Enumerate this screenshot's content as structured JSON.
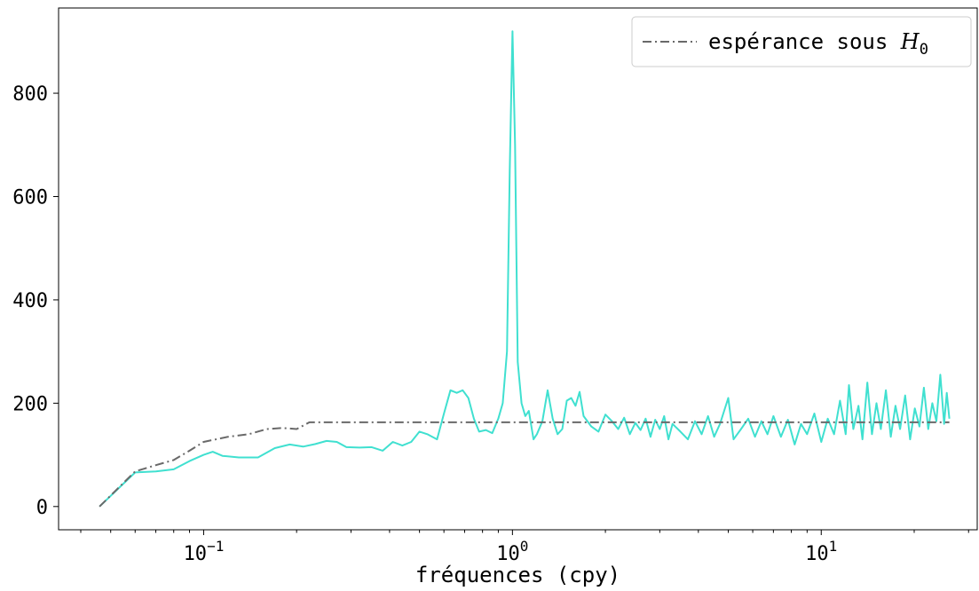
{
  "chart_data": {
    "type": "line",
    "x_scale": "log",
    "xlabel": "fréquences (cpy)",
    "ylabel": "",
    "xlim": [
      0.0339,
      32
    ],
    "ylim": [
      -45,
      965
    ],
    "y_ticks": [
      0,
      200,
      400,
      600,
      800
    ],
    "x_major_ticks": [
      {
        "value": 0.1,
        "base": "10",
        "exp": "−1"
      },
      {
        "value": 1,
        "base": "10",
        "exp": "0"
      },
      {
        "value": 10,
        "base": "10",
        "exp": "1"
      }
    ],
    "legend": {
      "position": "top-right",
      "entries": [
        {
          "text": "espérance sous ",
          "math": "H",
          "subscript": "0",
          "style": "dash-dot",
          "color": "#696969"
        }
      ]
    },
    "series": [
      {
        "style": "solid",
        "color": "#40e0d0",
        "points": [
          [
            0.046,
            0
          ],
          [
            0.06,
            66
          ],
          [
            0.07,
            68
          ],
          [
            0.08,
            72
          ],
          [
            0.09,
            88
          ],
          [
            0.1,
            100
          ],
          [
            0.107,
            106
          ],
          [
            0.115,
            98
          ],
          [
            0.13,
            95
          ],
          [
            0.15,
            95
          ],
          [
            0.17,
            113
          ],
          [
            0.19,
            120
          ],
          [
            0.21,
            116
          ],
          [
            0.23,
            121
          ],
          [
            0.25,
            127
          ],
          [
            0.27,
            125
          ],
          [
            0.29,
            115
          ],
          [
            0.32,
            114
          ],
          [
            0.35,
            115
          ],
          [
            0.38,
            108
          ],
          [
            0.41,
            125
          ],
          [
            0.44,
            118
          ],
          [
            0.47,
            125
          ],
          [
            0.5,
            145
          ],
          [
            0.53,
            140
          ],
          [
            0.57,
            130
          ],
          [
            0.6,
            180
          ],
          [
            0.63,
            225
          ],
          [
            0.66,
            220
          ],
          [
            0.69,
            225
          ],
          [
            0.72,
            210
          ],
          [
            0.75,
            170
          ],
          [
            0.78,
            145
          ],
          [
            0.82,
            148
          ],
          [
            0.86,
            142
          ],
          [
            0.9,
            170
          ],
          [
            0.93,
            200
          ],
          [
            0.96,
            300
          ],
          [
            0.98,
            650
          ],
          [
            1.0,
            920
          ],
          [
            1.02,
            700
          ],
          [
            1.04,
            280
          ],
          [
            1.07,
            200
          ],
          [
            1.1,
            175
          ],
          [
            1.13,
            185
          ],
          [
            1.17,
            130
          ],
          [
            1.2,
            140
          ],
          [
            1.25,
            165
          ],
          [
            1.3,
            225
          ],
          [
            1.35,
            170
          ],
          [
            1.4,
            140
          ],
          [
            1.45,
            150
          ],
          [
            1.5,
            205
          ],
          [
            1.55,
            210
          ],
          [
            1.6,
            195
          ],
          [
            1.65,
            222
          ],
          [
            1.7,
            175
          ],
          [
            1.8,
            155
          ],
          [
            1.9,
            145
          ],
          [
            2.0,
            178
          ],
          [
            2.1,
            165
          ],
          [
            2.2,
            150
          ],
          [
            2.3,
            172
          ],
          [
            2.4,
            140
          ],
          [
            2.5,
            162
          ],
          [
            2.6,
            148
          ],
          [
            2.7,
            170
          ],
          [
            2.8,
            135
          ],
          [
            2.9,
            168
          ],
          [
            3.0,
            150
          ],
          [
            3.1,
            175
          ],
          [
            3.2,
            130
          ],
          [
            3.3,
            160
          ],
          [
            3.5,
            145
          ],
          [
            3.7,
            130
          ],
          [
            3.9,
            165
          ],
          [
            4.1,
            140
          ],
          [
            4.3,
            175
          ],
          [
            4.5,
            135
          ],
          [
            4.7,
            160
          ],
          [
            5.0,
            210
          ],
          [
            5.2,
            130
          ],
          [
            5.5,
            150
          ],
          [
            5.8,
            170
          ],
          [
            6.1,
            135
          ],
          [
            6.4,
            165
          ],
          [
            6.7,
            140
          ],
          [
            7.0,
            175
          ],
          [
            7.4,
            135
          ],
          [
            7.8,
            168
          ],
          [
            8.2,
            120
          ],
          [
            8.6,
            160
          ],
          [
            9.0,
            140
          ],
          [
            9.5,
            180
          ],
          [
            10.0,
            125
          ],
          [
            10.5,
            170
          ],
          [
            11.0,
            140
          ],
          [
            11.5,
            205
          ],
          [
            12.0,
            140
          ],
          [
            12.3,
            235
          ],
          [
            12.7,
            150
          ],
          [
            13.2,
            195
          ],
          [
            13.6,
            130
          ],
          [
            14.1,
            240
          ],
          [
            14.6,
            140
          ],
          [
            15.1,
            200
          ],
          [
            15.6,
            150
          ],
          [
            16.2,
            225
          ],
          [
            16.8,
            135
          ],
          [
            17.4,
            195
          ],
          [
            18.0,
            150
          ],
          [
            18.7,
            215
          ],
          [
            19.4,
            130
          ],
          [
            20.1,
            190
          ],
          [
            20.8,
            155
          ],
          [
            21.5,
            230
          ],
          [
            22.2,
            150
          ],
          [
            22.9,
            200
          ],
          [
            23.6,
            165
          ],
          [
            24.3,
            255
          ],
          [
            25.0,
            160
          ],
          [
            25.5,
            220
          ],
          [
            26.0,
            170
          ]
        ]
      },
      {
        "style": "dash-dot",
        "color": "#696969",
        "points": [
          [
            0.046,
            0
          ],
          [
            0.06,
            68
          ],
          [
            0.07,
            80
          ],
          [
            0.08,
            90
          ],
          [
            0.09,
            108
          ],
          [
            0.1,
            125
          ],
          [
            0.12,
            135
          ],
          [
            0.14,
            140
          ],
          [
            0.16,
            150
          ],
          [
            0.18,
            152
          ],
          [
            0.2,
            150
          ],
          [
            0.22,
            163
          ],
          [
            1.0,
            163
          ],
          [
            10.0,
            163
          ],
          [
            26.0,
            163
          ]
        ]
      }
    ]
  }
}
